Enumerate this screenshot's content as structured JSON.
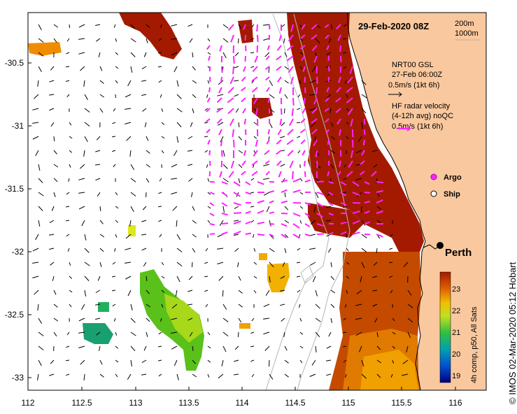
{
  "map": {
    "title": "29-Feb-2020 08Z",
    "depth_contours": [
      "200m",
      "1000m"
    ],
    "city_label": "Perth",
    "credit": "© IMOS 02-Mar-2020 05:12 Hobart",
    "x_ticks": [
      "112",
      "112.5",
      "113",
      "113.5",
      "114",
      "114.5",
      "115",
      "115.5",
      "116"
    ],
    "y_ticks": [
      "-30.5",
      "-31",
      "-31.5",
      "-32",
      "-32.5",
      "-33"
    ],
    "legend": {
      "gsl_line1": "NRT00 GSL",
      "gsl_line2": "27-Feb 06:00Z",
      "gsl_line3": "0.5m/s (1kt 6h)",
      "hf_line1": "HF radar velocity",
      "hf_line2": "(4-12h avg) noQC",
      "hf_line3": "0.5m/s (1kt 6h)",
      "argo_label": "Argo",
      "ship_label": "Ship"
    },
    "colorbar": {
      "ticks": [
        "23",
        "22",
        "21",
        "20",
        "19"
      ],
      "label": "4h comp, p50, All Sats"
    },
    "colors": {
      "land": "#fac89e",
      "hf_radar": "#ff22ff",
      "sst_warm": "#a41a00",
      "sst_cool": "#5ac01a"
    }
  }
}
